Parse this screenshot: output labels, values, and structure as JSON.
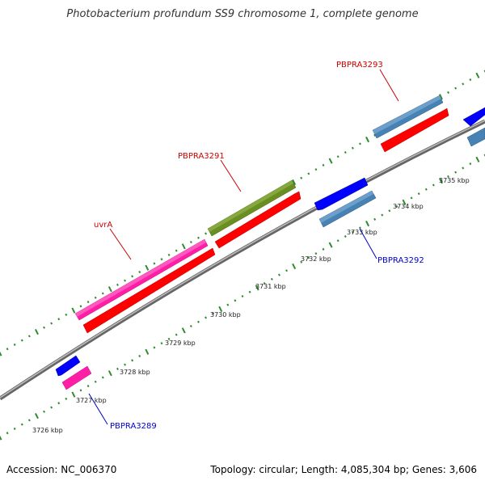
{
  "title": "Photobacterium profundum SS9 chromosome 1, complete genome",
  "footer": {
    "accession": "Accession: NC_006370",
    "summary": "Topology: circular; Length: 4,085,304 bp; Genes: 3,606"
  },
  "ticks": [
    "3726 kbp",
    "3727 kbp",
    "3728 kbp",
    "3729 kbp",
    "3730 kbp",
    "3731 kbp",
    "3732 kbp",
    "3733 kbp",
    "3734 kbp",
    "3735 kbp"
  ],
  "genes": {
    "uvrA": "uvrA",
    "PBPRA3291": "PBPRA3291",
    "PBPRA3293": "PBPRA3293",
    "PBPRA3292": "PBPRA3292",
    "PBPRA3289": "PBPRA3289"
  },
  "colors": {
    "backbone": "#888888",
    "dots": "#2e8b2e",
    "red": "#ff0000",
    "pink": "#ff1fa6",
    "olive": "#6b8e23",
    "steel": "#4682b4",
    "blue": "#0000ff",
    "label_red": "#cc0000",
    "label_blue": "#0000cc"
  }
}
